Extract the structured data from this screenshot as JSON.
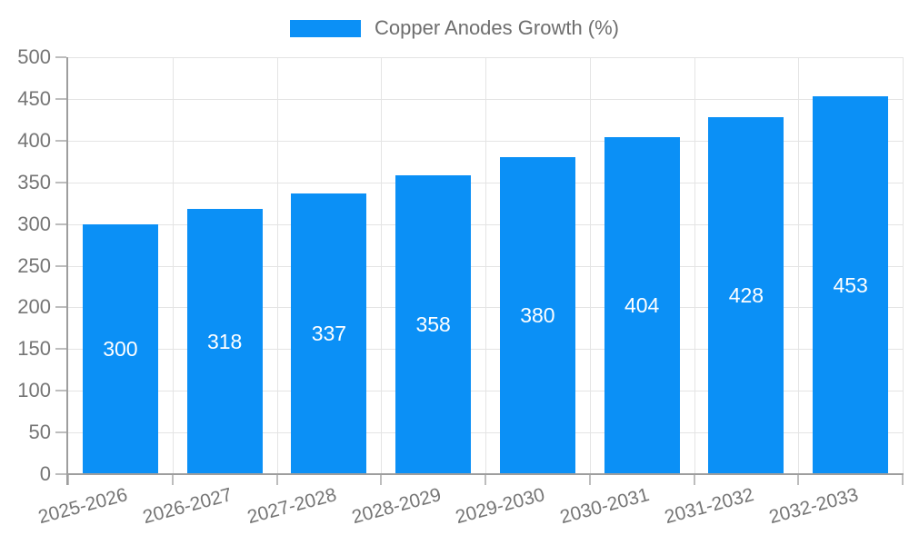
{
  "legend": {
    "label": "Copper Anodes Growth (%)"
  },
  "colors": {
    "bar": "#0b90f6",
    "axis": "#9e9e9e",
    "grid": "#e4e4e4",
    "tick": "#bdbdbd",
    "tick_label_text": "#757575",
    "legend_text": "#6e6e6e",
    "value_label_text": "#ffffff"
  },
  "chart_data": {
    "type": "bar",
    "title": "Copper Anodes Growth (%)",
    "categories": [
      "2025-2026",
      "2026-2027",
      "2027-2028",
      "2028-2029",
      "2029-2030",
      "2030-2031",
      "2031-2032",
      "2032-2033"
    ],
    "values": [
      300,
      318,
      337,
      358,
      380,
      404,
      428,
      453
    ],
    "xlabel": "",
    "ylabel": "",
    "ylim": [
      0,
      500
    ],
    "ytick_step": 50,
    "ytick_labels": [
      "0",
      "50",
      "100",
      "150",
      "200",
      "250",
      "300",
      "350",
      "400",
      "450",
      "500"
    ],
    "grid": true,
    "legend_position": "top-center",
    "value_labels_position": "inside-center",
    "x_label_rotation_deg": -15,
    "bar_color": "#0b90f6"
  }
}
